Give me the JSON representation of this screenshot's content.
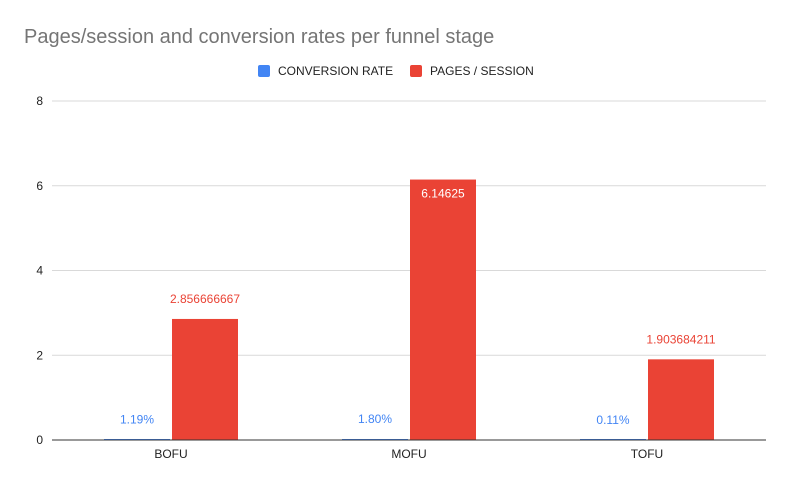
{
  "chart_data": {
    "type": "bar",
    "title": "Pages/session and conversion rates per funnel stage",
    "categories": [
      "BOFU",
      "MOFU",
      "TOFU"
    ],
    "series": [
      {
        "name": "CONVERSION RATE",
        "color": "#4285f4",
        "values": [
          0.0119,
          0.018,
          0.0011
        ],
        "labels": [
          "1.19%",
          "1.80%",
          "0.11%"
        ]
      },
      {
        "name": "PAGES / SESSION",
        "color": "#ea4335",
        "values": [
          2.856666667,
          6.14625,
          1.903684211
        ],
        "labels": [
          "2.856666667",
          "6.14625",
          "1.903684211"
        ]
      }
    ],
    "ylim": [
      0,
      8
    ],
    "yticks": [
      "0",
      "2",
      "4",
      "6",
      "8"
    ],
    "grid": true,
    "legend": "top-center",
    "xlabel": "",
    "ylabel": ""
  }
}
